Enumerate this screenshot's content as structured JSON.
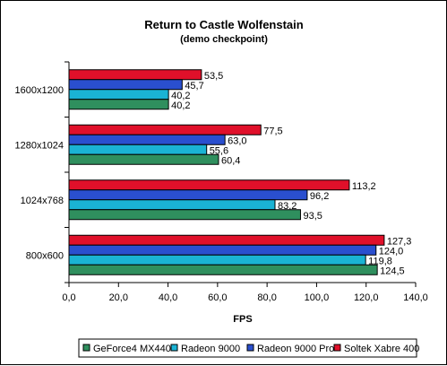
{
  "chart_data": {
    "type": "bar",
    "orientation": "horizontal",
    "title": "Return to Castle Wolfenstain",
    "subtitle": "(demo checkpoint)",
    "xlabel": "FPS",
    "ylabel": "",
    "xlim": [
      0,
      140
    ],
    "x_ticks": [
      "0,0",
      "20,0",
      "40,0",
      "60,0",
      "80,0",
      "100,0",
      "120,0",
      "140,0"
    ],
    "categories": [
      "1600x1200",
      "1280x1024",
      "1024x768",
      "800x600"
    ],
    "series": [
      {
        "name": "GeForce4 MX440",
        "color": "#2f8f5e",
        "values": [
          40.2,
          60.4,
          93.5,
          124.5
        ],
        "labels": [
          "40,2",
          "60,4",
          "93,5",
          "124,5"
        ]
      },
      {
        "name": "Radeon 9000",
        "color": "#1ab3d4",
        "values": [
          40.2,
          55.6,
          83.2,
          119.8
        ],
        "labels": [
          "40,2",
          "55,6",
          "83,2",
          "119,8"
        ]
      },
      {
        "name": "Radeon 9000 Pro",
        "color": "#2a4fcf",
        "values": [
          45.7,
          63.0,
          96.2,
          124.0
        ],
        "labels": [
          "45,7",
          "63,0",
          "96,2",
          "124,0"
        ]
      },
      {
        "name": "Soltek Xabre 400",
        "color": "#e0102a",
        "values": [
          53.5,
          77.5,
          113.2,
          127.3
        ],
        "labels": [
          "53,5",
          "77,5",
          "113,2",
          "127,3"
        ]
      }
    ],
    "grid": false,
    "legend_position": "bottom"
  }
}
